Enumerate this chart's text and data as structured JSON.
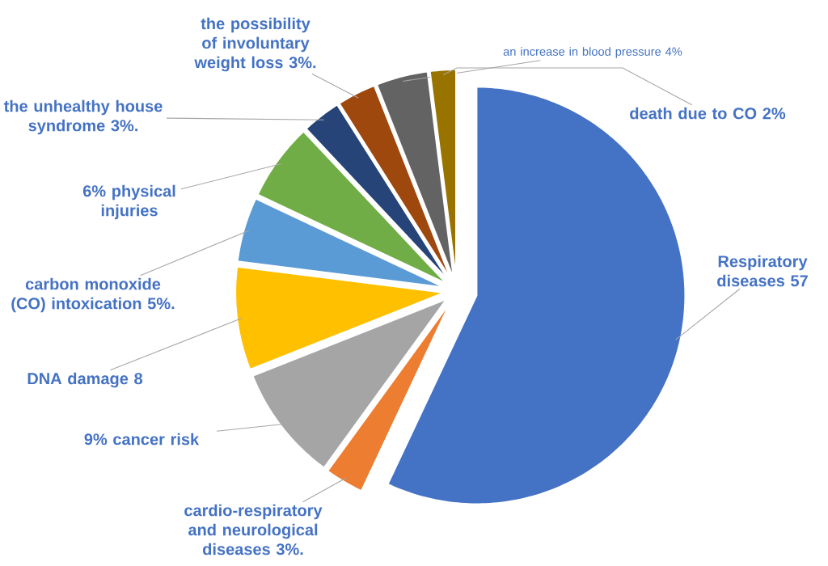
{
  "chart_data": {
    "type": "pie",
    "categories": [
      "Respiratory diseases 57",
      "cardio-respiratory and neurological diseases 3%.",
      "9% cancer risk",
      "DNA damage 8",
      "carbon monoxide (CO) intoxication 5%.",
      "6% physical injuries",
      "the unhealthy house syndrome 3%.",
      "the possibility of involuntary weight loss 3%.",
      "an increase in blood pressure 4%",
      "death due to CO 2%"
    ],
    "values": [
      57,
      3,
      9,
      8,
      5,
      6,
      3,
      3,
      4,
      2
    ],
    "colors": [
      "#4472c4",
      "#ed7d31",
      "#a5a5a5",
      "#ffc000",
      "#5b9bd5",
      "#70ad47",
      "#264478",
      "#9e480e",
      "#636363",
      "#997300"
    ]
  }
}
